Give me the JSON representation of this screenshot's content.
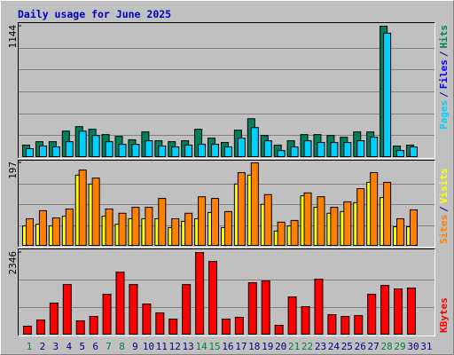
{
  "chart_data": {
    "type": "bar",
    "title": "Daily usage for June 2025",
    "days": [
      "1",
      "2",
      "3",
      "4",
      "5",
      "6",
      "7",
      "8",
      "9",
      "10",
      "11",
      "12",
      "13",
      "14",
      "15",
      "16",
      "17",
      "18",
      "19",
      "20",
      "21",
      "22",
      "23",
      "24",
      "25",
      "26",
      "27",
      "28",
      "29",
      "30",
      "31"
    ],
    "day_label_color": "#000080",
    "weekend_color": "#008040",
    "weekend_days": [
      1,
      7,
      8,
      14,
      15,
      21,
      22,
      28,
      29
    ],
    "legend_separator": "/",
    "panels": [
      {
        "ylim": [
          0,
          1144
        ],
        "yticks": [
          1144
        ],
        "series": [
          {
            "name": "Hits",
            "color": "#00805c",
            "values": [
              108,
              138,
              138,
              230,
              269,
              246,
              200,
              184,
              154,
              223,
              146,
              138,
              146,
              246,
              169,
              131,
              238,
              338,
              192,
              108,
              146,
              200,
              200,
              192,
              177,
              223,
              223,
              1144,
              100,
              108,
              null
            ]
          },
          {
            "name": "Pages",
            "color": "#00d0ff",
            "values": [
              77,
              100,
              92,
              138,
              230,
              192,
              138,
              115,
              115,
              146,
              100,
              92,
              108,
              115,
              115,
              92,
              169,
              261,
              146,
              61,
              92,
              146,
              131,
              131,
              131,
              146,
              177,
              1083,
              61,
              92,
              null
            ]
          }
        ],
        "legend_extra": {
          "name": "Files",
          "color": "#0000ff"
        }
      },
      {
        "ylim": [
          0,
          197
        ],
        "yticks": [
          197
        ],
        "series": [
          {
            "name": "Visits",
            "color": "#ffff00",
            "values": [
              48,
              52,
              48,
              71,
              168,
              147,
              71,
              52,
              65,
              65,
              65,
              44,
              59,
              65,
              80,
              44,
              147,
              168,
              99,
              36,
              48,
              119,
              92,
              78,
              82,
              103,
              151,
              115,
              46,
              46,
              null
            ]
          },
          {
            "name": "Sites",
            "color": "#ff8000",
            "values": [
              65,
              84,
              67,
              88,
              180,
              161,
              88,
              78,
              92,
              92,
              113,
              65,
              78,
              117,
              113,
              82,
              174,
              197,
              122,
              57,
              61,
              126,
              117,
              92,
              105,
              136,
              174,
              151,
              65,
              86,
              null
            ]
          }
        ]
      },
      {
        "ylim": [
          0,
          2346
        ],
        "yticks": [
          2346
        ],
        "series": [
          {
            "name": "KBytes",
            "color": "#ff0000",
            "values": [
              252,
              428,
              907,
              1436,
              403,
              529,
              1159,
              1789,
              1436,
              882,
              630,
              454,
              1436,
              2346,
              2092,
              454,
              504,
              1487,
              1537,
              277,
              1084,
              806,
              1588,
              580,
              529,
              554,
              1159,
              1411,
              1310,
              1336,
              null
            ]
          }
        ]
      }
    ]
  }
}
